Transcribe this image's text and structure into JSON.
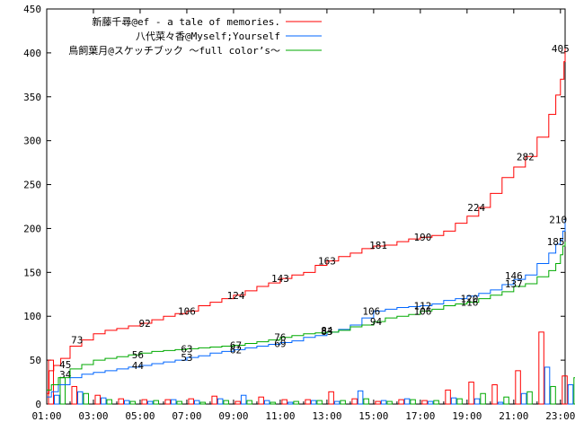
{
  "chart_data": {
    "type": "line",
    "title": "",
    "xlabel": "",
    "ylabel": "",
    "ylim": [
      0,
      450
    ],
    "y_ticks": [
      0,
      50,
      100,
      150,
      200,
      250,
      300,
      350,
      400,
      450
    ],
    "x_ticks": [
      "01:00",
      "03:00",
      "05:00",
      "07:00",
      "09:00",
      "11:00",
      "13:00",
      "15:00",
      "17:00",
      "19:00",
      "21:00",
      "23:00"
    ],
    "x_range_hours": [
      1,
      23.2
    ],
    "legend_position": "top-right",
    "grid": false,
    "series": [
      {
        "name": "新藤千尋@ef - a tale of memories.",
        "color": "#ff0000",
        "cumulative": [
          [
            1,
            12
          ],
          [
            1.1,
            38
          ],
          [
            1.3,
            44
          ],
          [
            1.6,
            52
          ],
          [
            2,
            66
          ],
          [
            2.5,
            73
          ],
          [
            3,
            80
          ],
          [
            3.5,
            84
          ],
          [
            4,
            86
          ],
          [
            4.5,
            89
          ],
          [
            5,
            92
          ],
          [
            5.5,
            96
          ],
          [
            6,
            100
          ],
          [
            6.5,
            103
          ],
          [
            7,
            106
          ],
          [
            7.5,
            112
          ],
          [
            8,
            116
          ],
          [
            8.5,
            120
          ],
          [
            9,
            124
          ],
          [
            9.5,
            129
          ],
          [
            10,
            134
          ],
          [
            10.5,
            138
          ],
          [
            11,
            143
          ],
          [
            11.5,
            147
          ],
          [
            12,
            150
          ],
          [
            12.5,
            158
          ],
          [
            13,
            163
          ],
          [
            13.5,
            168
          ],
          [
            14,
            172
          ],
          [
            14.5,
            177
          ],
          [
            15,
            180
          ],
          [
            15.5,
            181
          ],
          [
            16,
            185
          ],
          [
            16.5,
            188
          ],
          [
            17,
            190
          ],
          [
            17.5,
            192
          ],
          [
            18,
            197
          ],
          [
            18.5,
            206
          ],
          [
            19,
            214
          ],
          [
            19.5,
            224
          ],
          [
            20,
            240
          ],
          [
            20.5,
            258
          ],
          [
            21,
            270
          ],
          [
            21.5,
            282
          ],
          [
            22,
            304
          ],
          [
            22.5,
            330
          ],
          [
            22.8,
            352
          ],
          [
            23,
            370
          ],
          [
            23.15,
            390
          ],
          [
            23.2,
            405
          ]
        ],
        "labels": [
          [
            2.3,
            73
          ],
          [
            5.2,
            92
          ],
          [
            7,
            106
          ],
          [
            9.1,
            124
          ],
          [
            11,
            143
          ],
          [
            13,
            163
          ],
          [
            15.2,
            181
          ],
          [
            17.1,
            190
          ],
          [
            19.4,
            224
          ],
          [
            21.5,
            282
          ],
          [
            23,
            405
          ]
        ],
        "hourly": [
          50,
          20,
          10,
          6,
          5,
          5,
          6,
          9,
          3,
          8,
          5,
          5,
          14,
          6,
          3,
          5,
          4,
          16,
          25,
          22,
          38,
          82,
          32
        ]
      },
      {
        "name": "八代菜々香@Myself;Yourself",
        "color": "#0066ff",
        "cumulative": [
          [
            1,
            8
          ],
          [
            1.2,
            14
          ],
          [
            1.5,
            22
          ],
          [
            2,
            30
          ],
          [
            2.5,
            34
          ],
          [
            3,
            36
          ],
          [
            3.5,
            38
          ],
          [
            4,
            40
          ],
          [
            4.5,
            42
          ],
          [
            5,
            44
          ],
          [
            5.5,
            46
          ],
          [
            6,
            48
          ],
          [
            6.5,
            50
          ],
          [
            7,
            53
          ],
          [
            7.5,
            55
          ],
          [
            8,
            58
          ],
          [
            8.5,
            60
          ],
          [
            9,
            62
          ],
          [
            9.5,
            64
          ],
          [
            10,
            66
          ],
          [
            10.5,
            68
          ],
          [
            11,
            70
          ],
          [
            11.5,
            72
          ],
          [
            12,
            76
          ],
          [
            12.5,
            78
          ],
          [
            13,
            82
          ],
          [
            13.5,
            85
          ],
          [
            14,
            90
          ],
          [
            14.5,
            98
          ],
          [
            15,
            106
          ],
          [
            15.5,
            108
          ],
          [
            16,
            110
          ],
          [
            16.5,
            111
          ],
          [
            17,
            112
          ],
          [
            17.5,
            114
          ],
          [
            18,
            118
          ],
          [
            18.5,
            120
          ],
          [
            19,
            123
          ],
          [
            19.5,
            126
          ],
          [
            20,
            130
          ],
          [
            20.5,
            136
          ],
          [
            21,
            142
          ],
          [
            21.5,
            147
          ],
          [
            22,
            160
          ],
          [
            22.5,
            172
          ],
          [
            22.8,
            182
          ],
          [
            23,
            187
          ],
          [
            23.1,
            197
          ],
          [
            23.2,
            210
          ]
        ],
        "labels": [
          [
            1.8,
            34
          ],
          [
            4.9,
            44
          ],
          [
            7,
            53
          ],
          [
            9.1,
            62
          ],
          [
            11,
            69
          ],
          [
            13,
            83
          ],
          [
            14.9,
            106
          ],
          [
            17.1,
            112
          ],
          [
            19.1,
            120
          ],
          [
            21,
            146
          ],
          [
            22.8,
            185
          ],
          [
            22.9,
            210
          ]
        ],
        "hourly": [
          10,
          14,
          7,
          4,
          3,
          5,
          4,
          6,
          10,
          4,
          2,
          4,
          3,
          15,
          4,
          6,
          3,
          7,
          6,
          2,
          12,
          42,
          22
        ]
      },
      {
        "name": "鳥飼葉月@スケッチブック ～full color’s～",
        "color": "#00aa00",
        "cumulative": [
          [
            1,
            16
          ],
          [
            1.2,
            22
          ],
          [
            1.5,
            30
          ],
          [
            2,
            40
          ],
          [
            2.5,
            45
          ],
          [
            3,
            50
          ],
          [
            3.5,
            52
          ],
          [
            4,
            54
          ],
          [
            4.5,
            56
          ],
          [
            5,
            58
          ],
          [
            5.5,
            60
          ],
          [
            6,
            61
          ],
          [
            6.5,
            62
          ],
          [
            7,
            63
          ],
          [
            7.5,
            64
          ],
          [
            8,
            65
          ],
          [
            8.5,
            66
          ],
          [
            9,
            67
          ],
          [
            9.5,
            69
          ],
          [
            10,
            71
          ],
          [
            10.5,
            73
          ],
          [
            11,
            76
          ],
          [
            11.5,
            78
          ],
          [
            12,
            80
          ],
          [
            12.5,
            81
          ],
          [
            13,
            82
          ],
          [
            13.5,
            84
          ],
          [
            14,
            88
          ],
          [
            14.5,
            90
          ],
          [
            15,
            94
          ],
          [
            15.5,
            98
          ],
          [
            16,
            100
          ],
          [
            16.5,
            102
          ],
          [
            17,
            106
          ],
          [
            17.5,
            108
          ],
          [
            18,
            112
          ],
          [
            18.5,
            114
          ],
          [
            19,
            116
          ],
          [
            19.5,
            120
          ],
          [
            20,
            124
          ],
          [
            20.5,
            128
          ],
          [
            21,
            134
          ],
          [
            21.5,
            137
          ],
          [
            22,
            145
          ],
          [
            22.5,
            152
          ],
          [
            22.8,
            160
          ],
          [
            23,
            170
          ],
          [
            23.1,
            180
          ],
          [
            23.2,
            185
          ]
        ],
        "labels": [
          [
            1.8,
            45
          ],
          [
            4.9,
            56
          ],
          [
            7,
            63
          ],
          [
            9.1,
            67
          ],
          [
            11,
            76
          ],
          [
            13,
            84
          ],
          [
            15.1,
            94
          ],
          [
            17.1,
            106
          ],
          [
            19.1,
            116
          ],
          [
            21,
            137
          ]
        ],
        "hourly": [
          30,
          12,
          5,
          3,
          4,
          3,
          2,
          4,
          4,
          2,
          3,
          4,
          4,
          6,
          3,
          5,
          4,
          6,
          12,
          8,
          14,
          20,
          30
        ]
      }
    ]
  }
}
